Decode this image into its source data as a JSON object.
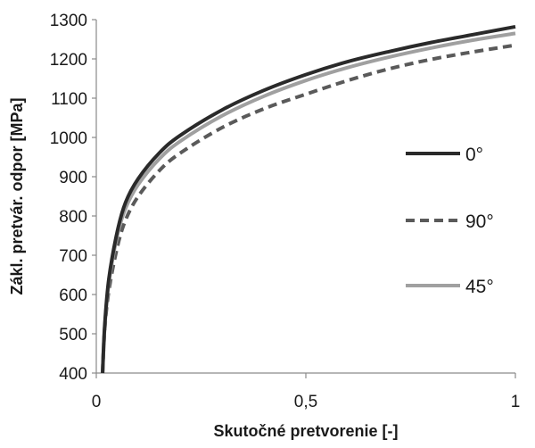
{
  "chart_data": {
    "type": "line",
    "title": "",
    "xlabel": "Skutočné pretvorenie [-]",
    "ylabel": "Zákl. pretvár. odpor [MPa]",
    "xlim": [
      0,
      1
    ],
    "ylim": [
      400,
      1300
    ],
    "x_ticks": [
      0,
      0.5,
      1
    ],
    "x_tick_labels": [
      "0",
      "0,5",
      "1"
    ],
    "y_ticks": [
      400,
      500,
      600,
      700,
      800,
      900,
      1000,
      1100,
      1200,
      1300
    ],
    "y_tick_labels": [
      "400",
      "500",
      "600",
      "700",
      "800",
      "900",
      "1000",
      "1100",
      "1200",
      "1300"
    ],
    "grid": false,
    "legend_position": "right",
    "series": [
      {
        "name": "0°",
        "color": "#2a2a2a",
        "style": "solid",
        "x": [
          0.015,
          0.02,
          0.03,
          0.05,
          0.07,
          0.1,
          0.15,
          0.2,
          0.3,
          0.4,
          0.5,
          0.6,
          0.7,
          0.8,
          0.9,
          1.0
        ],
        "y": [
          400,
          520,
          640,
          760,
          835,
          895,
          960,
          1005,
          1070,
          1120,
          1160,
          1193,
          1219,
          1242,
          1262,
          1282
        ]
      },
      {
        "name": "90°",
        "color": "#5a5a5a",
        "style": "dashed",
        "x": [
          0.015,
          0.02,
          0.03,
          0.05,
          0.07,
          0.1,
          0.15,
          0.2,
          0.3,
          0.4,
          0.5,
          0.6,
          0.7,
          0.8,
          0.9,
          1.0
        ],
        "y": [
          400,
          510,
          610,
          720,
          790,
          850,
          915,
          960,
          1025,
          1073,
          1110,
          1145,
          1175,
          1199,
          1218,
          1235
        ]
      },
      {
        "name": "45°",
        "color": "#a0a0a0",
        "style": "solid",
        "x": [
          0.015,
          0.02,
          0.03,
          0.05,
          0.07,
          0.1,
          0.15,
          0.2,
          0.3,
          0.4,
          0.5,
          0.6,
          0.7,
          0.8,
          0.9,
          1.0
        ],
        "y": [
          400,
          515,
          630,
          750,
          820,
          880,
          945,
          990,
          1055,
          1105,
          1145,
          1178,
          1205,
          1228,
          1248,
          1265
        ]
      }
    ]
  }
}
